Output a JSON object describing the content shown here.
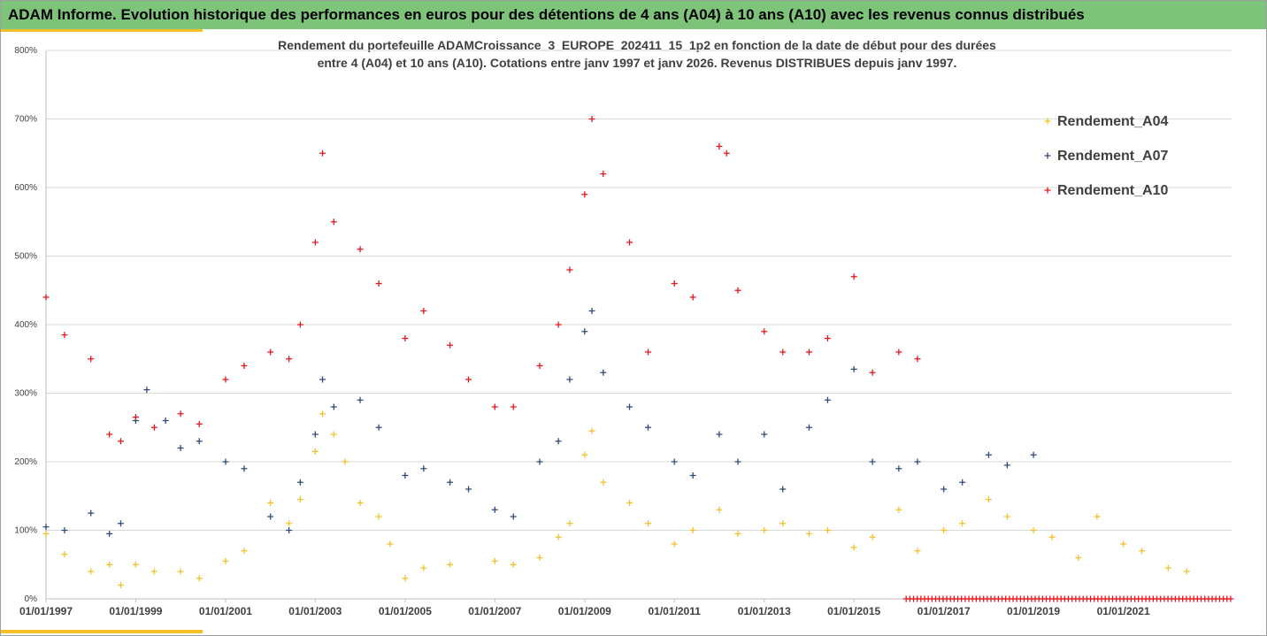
{
  "banner_title": "ADAM Informe. Evolution historique des performances en euros pour des détentions de 4 ans (A04) à 10 ans (A10) avec les revenus connus distribués",
  "colors": {
    "banner": "#7dc47a",
    "accent": "#f5c027",
    "A04": "#f5c027",
    "A07": "#2e4a7a",
    "A10": "#e8141c"
  },
  "chart_data": {
    "type": "scatter",
    "title_lines": [
      "Rendement du portefeuille ADAMCroissance_3_EUROPE_202411_15_1p2  en fonction de la date de début pour des durées",
      "entre 4 (A04) et 10 ans (A10). Cotations entre janv 1997 et janv 2026. Revenus DISTRIBUES depuis janv 1997."
    ],
    "x_axis": {
      "type": "date",
      "range": [
        "1997-01-01",
        "2023-06-01"
      ],
      "tick_labels": [
        "01/01/1997",
        "01/01/1999",
        "01/01/2001",
        "01/01/2003",
        "01/01/2005",
        "01/01/2007",
        "01/01/2009",
        "01/01/2011",
        "01/01/2013",
        "01/01/2015",
        "01/01/2017",
        "01/01/2019",
        "01/01/2021"
      ]
    },
    "y_axis": {
      "range": [
        0,
        800
      ],
      "tick_values": [
        0,
        100,
        200,
        300,
        400,
        500,
        600,
        700,
        800
      ],
      "tick_labels": [
        "0%",
        "100%",
        "200%",
        "300%",
        "400%",
        "500%",
        "600%",
        "700%",
        "800%"
      ],
      "grid": true
    },
    "legend": {
      "position": "right",
      "entries": [
        "Rendement_A04",
        "Rendement_A07",
        "Rendement_A10"
      ]
    },
    "series": [
      {
        "name": "Rendement_A04",
        "color": "#f5c027",
        "points": [
          [
            "1997-01-01",
            95
          ],
          [
            "1997-06-01",
            65
          ],
          [
            "1998-01-01",
            40
          ],
          [
            "1998-06-01",
            50
          ],
          [
            "1998-09-01",
            20
          ],
          [
            "1999-01-01",
            50
          ],
          [
            "1999-06-01",
            40
          ],
          [
            "2000-01-01",
            40
          ],
          [
            "2000-06-01",
            30
          ],
          [
            "2001-01-01",
            55
          ],
          [
            "2001-06-01",
            70
          ],
          [
            "2002-01-01",
            140
          ],
          [
            "2002-06-01",
            110
          ],
          [
            "2002-09-01",
            145
          ],
          [
            "2003-01-01",
            215
          ],
          [
            "2003-03-01",
            270
          ],
          [
            "2003-06-01",
            240
          ],
          [
            "2003-09-01",
            200
          ],
          [
            "2004-01-01",
            140
          ],
          [
            "2004-06-01",
            120
          ],
          [
            "2004-09-01",
            80
          ],
          [
            "2005-01-01",
            30
          ],
          [
            "2005-06-01",
            45
          ],
          [
            "2006-01-01",
            50
          ],
          [
            "2007-01-01",
            55
          ],
          [
            "2007-06-01",
            50
          ],
          [
            "2008-01-01",
            60
          ],
          [
            "2008-06-01",
            90
          ],
          [
            "2008-09-01",
            110
          ],
          [
            "2009-01-01",
            210
          ],
          [
            "2009-03-01",
            245
          ],
          [
            "2009-06-01",
            170
          ],
          [
            "2010-01-01",
            140
          ],
          [
            "2010-06-01",
            110
          ],
          [
            "2011-01-01",
            80
          ],
          [
            "2011-06-01",
            100
          ],
          [
            "2012-01-01",
            130
          ],
          [
            "2012-06-01",
            95
          ],
          [
            "2013-01-01",
            100
          ],
          [
            "2013-06-01",
            110
          ],
          [
            "2014-01-01",
            95
          ],
          [
            "2014-06-01",
            100
          ],
          [
            "2015-01-01",
            75
          ],
          [
            "2015-06-01",
            90
          ],
          [
            "2016-01-01",
            130
          ],
          [
            "2016-06-01",
            70
          ],
          [
            "2017-01-01",
            100
          ],
          [
            "2017-06-01",
            110
          ],
          [
            "2018-01-01",
            145
          ],
          [
            "2018-06-01",
            120
          ],
          [
            "2019-01-01",
            100
          ],
          [
            "2019-06-01",
            90
          ],
          [
            "2020-01-01",
            60
          ],
          [
            "2020-06-01",
            120
          ],
          [
            "2021-01-01",
            80
          ],
          [
            "2021-06-01",
            70
          ],
          [
            "2022-01-01",
            45
          ],
          [
            "2022-06-01",
            40
          ]
        ]
      },
      {
        "name": "Rendement_A07",
        "color": "#2e4a7a",
        "points": [
          [
            "1997-01-01",
            105
          ],
          [
            "1997-06-01",
            100
          ],
          [
            "1998-01-01",
            125
          ],
          [
            "1998-06-01",
            95
          ],
          [
            "1998-09-01",
            110
          ],
          [
            "1999-01-01",
            260
          ],
          [
            "1999-04-01",
            305
          ],
          [
            "1999-09-01",
            260
          ],
          [
            "2000-01-01",
            220
          ],
          [
            "2000-06-01",
            230
          ],
          [
            "2001-01-01",
            200
          ],
          [
            "2001-06-01",
            190
          ],
          [
            "2002-01-01",
            120
          ],
          [
            "2002-06-01",
            100
          ],
          [
            "2002-09-01",
            170
          ],
          [
            "2003-01-01",
            240
          ],
          [
            "2003-03-01",
            320
          ],
          [
            "2003-06-01",
            280
          ],
          [
            "2004-01-01",
            290
          ],
          [
            "2004-06-01",
            250
          ],
          [
            "2005-01-01",
            180
          ],
          [
            "2005-06-01",
            190
          ],
          [
            "2006-01-01",
            170
          ],
          [
            "2006-06-01",
            160
          ],
          [
            "2007-01-01",
            130
          ],
          [
            "2007-06-01",
            120
          ],
          [
            "2008-01-01",
            200
          ],
          [
            "2008-06-01",
            230
          ],
          [
            "2008-09-01",
            320
          ],
          [
            "2009-01-01",
            390
          ],
          [
            "2009-03-01",
            420
          ],
          [
            "2009-06-01",
            330
          ],
          [
            "2010-01-01",
            280
          ],
          [
            "2010-06-01",
            250
          ],
          [
            "2011-01-01",
            200
          ],
          [
            "2011-06-01",
            180
          ],
          [
            "2012-01-01",
            240
          ],
          [
            "2012-06-01",
            200
          ],
          [
            "2013-01-01",
            240
          ],
          [
            "2013-06-01",
            160
          ],
          [
            "2014-01-01",
            250
          ],
          [
            "2014-06-01",
            290
          ],
          [
            "2015-01-01",
            335
          ],
          [
            "2015-06-01",
            200
          ],
          [
            "2016-01-01",
            190
          ],
          [
            "2016-06-01",
            200
          ],
          [
            "2017-01-01",
            160
          ],
          [
            "2017-06-01",
            170
          ],
          [
            "2018-01-01",
            210
          ],
          [
            "2018-06-01",
            195
          ],
          [
            "2019-01-01",
            210
          ]
        ]
      },
      {
        "name": "Rendement_A10",
        "color": "#e8141c",
        "points": [
          [
            "1997-01-01",
            440
          ],
          [
            "1997-06-01",
            385
          ],
          [
            "1998-01-01",
            350
          ],
          [
            "1998-06-01",
            240
          ],
          [
            "1998-09-01",
            230
          ],
          [
            "1999-01-01",
            265
          ],
          [
            "1999-06-01",
            250
          ],
          [
            "2000-01-01",
            270
          ],
          [
            "2000-06-01",
            255
          ],
          [
            "2001-01-01",
            320
          ],
          [
            "2001-06-01",
            340
          ],
          [
            "2002-01-01",
            360
          ],
          [
            "2002-06-01",
            350
          ],
          [
            "2002-09-01",
            400
          ],
          [
            "2003-01-01",
            520
          ],
          [
            "2003-03-01",
            650
          ],
          [
            "2003-06-01",
            550
          ],
          [
            "2004-01-01",
            510
          ],
          [
            "2004-06-01",
            460
          ],
          [
            "2005-01-01",
            380
          ],
          [
            "2005-06-01",
            420
          ],
          [
            "2006-01-01",
            370
          ],
          [
            "2006-06-01",
            320
          ],
          [
            "2007-01-01",
            280
          ],
          [
            "2007-06-01",
            280
          ],
          [
            "2008-01-01",
            340
          ],
          [
            "2008-06-01",
            400
          ],
          [
            "2008-09-01",
            480
          ],
          [
            "2009-01-01",
            590
          ],
          [
            "2009-03-01",
            700
          ],
          [
            "2009-06-01",
            620
          ],
          [
            "2010-01-01",
            520
          ],
          [
            "2010-06-01",
            360
          ],
          [
            "2011-01-01",
            460
          ],
          [
            "2011-06-01",
            440
          ],
          [
            "2012-01-01",
            660
          ],
          [
            "2012-03-01",
            650
          ],
          [
            "2012-06-01",
            450
          ],
          [
            "2013-01-01",
            390
          ],
          [
            "2013-06-01",
            360
          ],
          [
            "2014-01-01",
            360
          ],
          [
            "2014-06-01",
            380
          ],
          [
            "2015-01-01",
            470
          ],
          [
            "2015-06-01",
            330
          ],
          [
            "2016-01-01",
            360
          ],
          [
            "2016-06-01",
            350
          ]
        ]
      }
    ],
    "a10_zero_segment": {
      "from": "2016-03-01",
      "to": "2023-06-01",
      "value": 0
    }
  }
}
